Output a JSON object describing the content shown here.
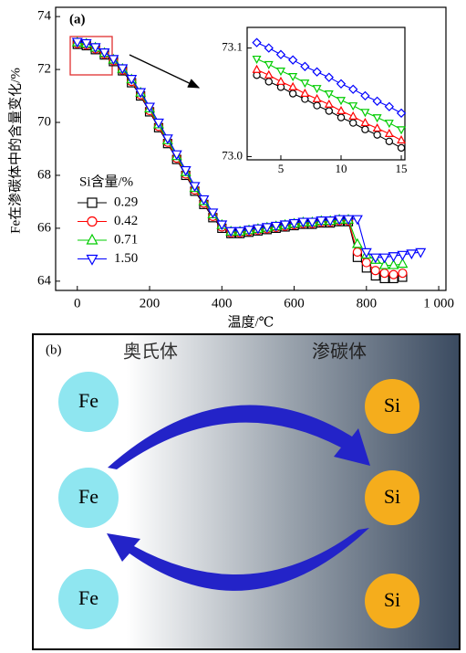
{
  "chart_data": [
    {
      "type": "line",
      "label": "(a)",
      "x_label": "温度/℃",
      "y_label": "Fe在渗碳体中的含量变化/%",
      "legend_title": "Si含量/%",
      "legend": "left",
      "xlim": [
        -60,
        1020
      ],
      "ylim": [
        63.65,
        74.35
      ],
      "xticks": [
        0,
        200,
        400,
        600,
        800,
        {
          "value": 1000,
          "label": "1 000"
        }
      ],
      "yticks": [
        64,
        66,
        68,
        70,
        72,
        74
      ],
      "series": [
        {
          "name": "0.29",
          "color": "#000000",
          "marker": "square",
          "x": [
            0,
            25,
            50,
            75,
            100,
            125,
            150,
            175,
            200,
            225,
            250,
            275,
            300,
            325,
            350,
            375,
            400,
            425,
            450,
            475,
            500,
            525,
            550,
            575,
            600,
            625,
            650,
            675,
            700,
            725,
            750,
            775,
            800,
            825,
            850,
            875,
            900
          ],
          "values": [
            72.95,
            72.9,
            72.75,
            72.55,
            72.3,
            71.95,
            71.5,
            71.0,
            70.4,
            69.8,
            69.2,
            68.6,
            68.0,
            67.4,
            66.9,
            66.4,
            66.0,
            65.8,
            65.8,
            65.85,
            65.9,
            65.95,
            66.0,
            66.05,
            66.1,
            66.15,
            66.15,
            66.2,
            66.2,
            66.25,
            66.25,
            64.9,
            64.5,
            64.2,
            64.1,
            64.1,
            64.15
          ]
        },
        {
          "name": "0.42",
          "color": "#ff0000",
          "marker": "circle",
          "x": [
            0,
            25,
            50,
            75,
            100,
            125,
            150,
            175,
            200,
            225,
            250,
            275,
            300,
            325,
            350,
            375,
            400,
            425,
            450,
            475,
            500,
            525,
            550,
            575,
            600,
            625,
            650,
            675,
            700,
            725,
            750,
            775,
            800,
            825,
            850,
            875,
            900
          ],
          "values": [
            72.98,
            72.93,
            72.78,
            72.58,
            72.33,
            71.98,
            71.55,
            71.05,
            70.45,
            69.85,
            69.25,
            68.65,
            68.05,
            67.45,
            66.95,
            66.45,
            66.05,
            65.83,
            65.83,
            65.88,
            65.93,
            65.98,
            66.03,
            66.08,
            66.13,
            66.18,
            66.18,
            66.23,
            66.23,
            66.28,
            66.28,
            65.1,
            64.7,
            64.4,
            64.3,
            64.25,
            64.3
          ]
        },
        {
          "name": "0.71",
          "color": "#00cc00",
          "marker": "triangle-up",
          "x": [
            0,
            25,
            50,
            75,
            100,
            125,
            150,
            175,
            200,
            225,
            250,
            275,
            300,
            325,
            350,
            375,
            400,
            425,
            450,
            475,
            500,
            525,
            550,
            575,
            600,
            625,
            650,
            675,
            700,
            725,
            750,
            775,
            800,
            825,
            850,
            875,
            900
          ],
          "values": [
            73.02,
            72.97,
            72.82,
            72.62,
            72.37,
            72.02,
            71.62,
            71.12,
            70.52,
            69.92,
            69.32,
            68.72,
            68.12,
            67.52,
            67.02,
            66.52,
            66.12,
            65.87,
            65.87,
            65.92,
            65.97,
            66.02,
            66.07,
            66.12,
            66.17,
            66.22,
            66.22,
            66.27,
            66.27,
            66.32,
            66.32,
            65.4,
            65.0,
            64.8,
            64.6,
            64.6,
            64.65
          ]
        },
        {
          "name": "1.50",
          "color": "#0000ff",
          "marker": "triangle-down",
          "x": [
            0,
            25,
            50,
            75,
            100,
            125,
            150,
            175,
            200,
            225,
            250,
            275,
            300,
            325,
            350,
            375,
            400,
            425,
            450,
            475,
            500,
            525,
            550,
            575,
            600,
            625,
            650,
            675,
            700,
            725,
            750,
            775,
            800,
            825,
            850,
            875,
            900,
            925,
            950
          ],
          "values": [
            73.05,
            73.0,
            72.85,
            72.65,
            72.4,
            72.05,
            71.65,
            71.15,
            70.6,
            70.0,
            69.4,
            68.8,
            68.2,
            67.6,
            67.1,
            66.6,
            66.15,
            65.9,
            65.9,
            65.95,
            66.0,
            66.05,
            66.1,
            66.15,
            66.2,
            66.25,
            66.25,
            66.3,
            66.3,
            66.35,
            66.35,
            66.35,
            65.1,
            64.9,
            64.9,
            64.95,
            65.0,
            65.05,
            65.1
          ]
        }
      ]
    },
    {
      "type": "line",
      "xlim": [
        2.2,
        15.3
      ],
      "ylim": [
        72.997,
        73.119
      ],
      "xticks": [
        5,
        10,
        15
      ],
      "yticks": [
        {
          "value": 73,
          "label": "73.0"
        },
        73.1
      ],
      "series": [
        {
          "color": "#000000",
          "marker": "circle",
          "x": [
            3,
            4,
            5,
            6,
            7,
            8,
            9,
            10,
            11,
            12,
            13,
            14,
            15
          ],
          "values": [
            73.075,
            73.069,
            73.064,
            73.058,
            73.053,
            73.047,
            73.042,
            73.036,
            73.031,
            73.025,
            73.02,
            73.014,
            73.008
          ]
        },
        {
          "color": "#ff0000",
          "marker": "triangle-up",
          "x": [
            3,
            4,
            5,
            6,
            7,
            8,
            9,
            10,
            11,
            12,
            13,
            14,
            15
          ],
          "values": [
            73.08,
            73.075,
            73.069,
            73.064,
            73.058,
            73.053,
            73.048,
            73.042,
            73.037,
            73.031,
            73.026,
            73.021,
            73.015
          ]
        },
        {
          "color": "#00cc00",
          "marker": "triangle-down",
          "x": [
            3,
            4,
            5,
            6,
            7,
            8,
            9,
            10,
            11,
            12,
            13,
            14,
            15
          ],
          "values": [
            73.09,
            73.085,
            73.079,
            73.074,
            73.068,
            73.063,
            73.058,
            73.052,
            73.047,
            73.041,
            73.036,
            73.031,
            73.025
          ]
        },
        {
          "color": "#0000ff",
          "marker": "diamond",
          "x": [
            3,
            4,
            5,
            6,
            7,
            8,
            9,
            10,
            11,
            12,
            13,
            14,
            15
          ],
          "values": [
            73.105,
            73.1,
            73.094,
            73.089,
            73.083,
            73.078,
            73.073,
            73.067,
            73.062,
            73.056,
            73.051,
            73.046,
            73.04
          ]
        }
      ]
    }
  ],
  "diagram": {
    "label": "(b)",
    "left_title": "奥氏体",
    "right_title": "渗碳体",
    "left_atoms": [
      "Fe",
      "Fe",
      "Fe"
    ],
    "right_atoms": [
      "Si",
      "Si",
      "Si"
    ]
  }
}
